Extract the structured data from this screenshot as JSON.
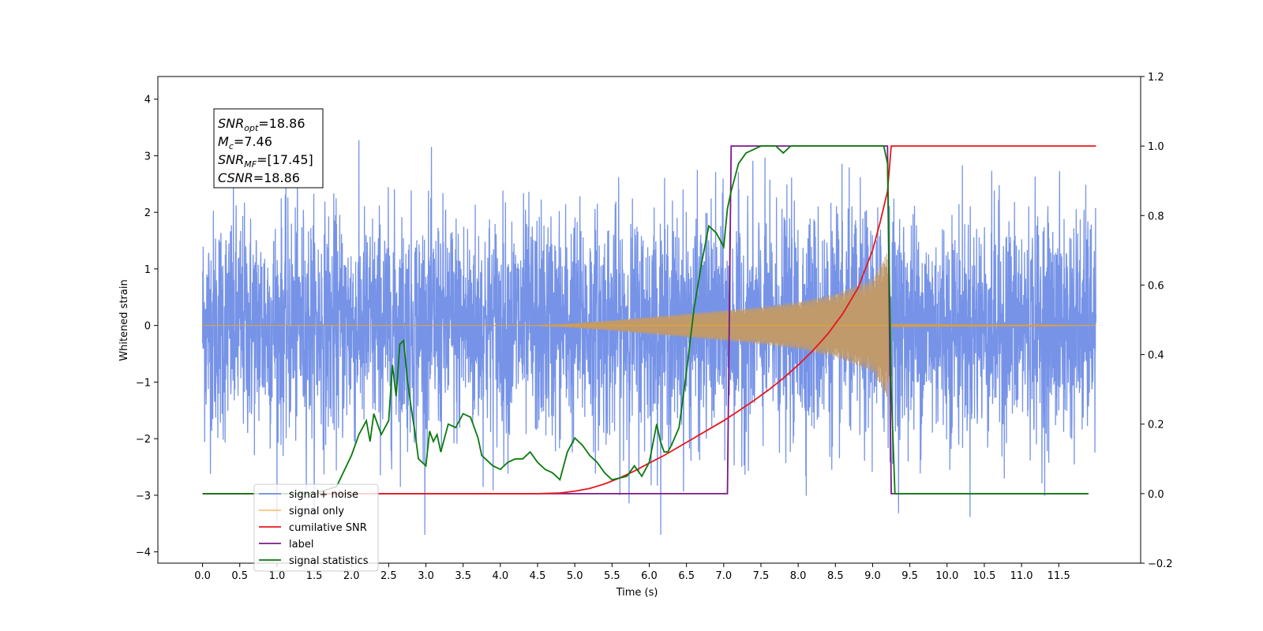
{
  "chart_data": {
    "type": "line",
    "xlabel": "Time (s)",
    "ylabel": "Whitened strain",
    "xlim": [
      -0.6,
      12.6
    ],
    "ylim": [
      -4.2,
      4.4
    ],
    "y2lim": [
      -0.2,
      1.2
    ],
    "grid": false,
    "legend_position": "lower-left",
    "x_ticks": [
      "0.0",
      "0.5",
      "1.0",
      "1.5",
      "2.0",
      "2.5",
      "3.0",
      "3.5",
      "4.0",
      "4.5",
      "5.0",
      "5.5",
      "6.0",
      "6.5",
      "7.0",
      "7.5",
      "8.0",
      "8.5",
      "9.0",
      "9.5",
      "10.0",
      "10.5",
      "11.0",
      "11.5"
    ],
    "y_ticks": [
      4,
      3,
      2,
      1,
      0,
      -1,
      -2,
      -3,
      -4
    ],
    "y_tick_labels": [
      "4",
      "3",
      "2",
      "1",
      "0",
      "−1",
      "−2",
      "−3",
      "−4"
    ],
    "y2_ticks": [
      1.2,
      1.0,
      0.8,
      0.6,
      0.4,
      0.2,
      0.0,
      -0.2
    ],
    "y2_tick_labels": [
      "1.2",
      "1.0",
      "0.8",
      "0.6",
      "0.4",
      "0.2",
      "0.0",
      "−0.2"
    ],
    "colors": {
      "signal_noise": "#6f8de6",
      "signal_only": "#f5a623",
      "signal_envelope": "#c09a6b",
      "cumulative_snr": "#e8161c",
      "label": "#7a1a8a",
      "signal_statistics": "#0a7a0a"
    },
    "series": [
      {
        "name": "signal+ noise",
        "axis": "left",
        "kind": "noise",
        "x_range": [
          0.0,
          12.0
        ],
        "sigma": 1.0,
        "color": "#6f8de6"
      },
      {
        "name": "signal only",
        "axis": "left",
        "kind": "chirp",
        "x": [
          4.5,
          5.0,
          5.5,
          6.0,
          6.5,
          7.0,
          7.5,
          8.0,
          8.5,
          9.0,
          9.2,
          9.25,
          9.3,
          12.0
        ],
        "amplitude": [
          0.0,
          0.04,
          0.09,
          0.15,
          0.21,
          0.27,
          0.33,
          0.42,
          0.56,
          0.82,
          1.3,
          0.0,
          0.03,
          0.0
        ],
        "color": "#c09a6b"
      },
      {
        "name": "cumilative SNR",
        "axis": "right",
        "x": [
          0.0,
          4.5,
          4.8,
          5.0,
          5.2,
          5.4,
          5.6,
          5.8,
          6.0,
          6.2,
          6.4,
          6.6,
          6.8,
          7.0,
          7.2,
          7.4,
          7.6,
          7.8,
          8.0,
          8.2,
          8.4,
          8.6,
          8.8,
          9.0,
          9.1,
          9.2,
          9.25,
          12.0
        ],
        "y": [
          0.0,
          0.0,
          0.002,
          0.007,
          0.015,
          0.028,
          0.045,
          0.065,
          0.088,
          0.11,
          0.135,
          0.16,
          0.185,
          0.21,
          0.238,
          0.267,
          0.298,
          0.332,
          0.37,
          0.412,
          0.46,
          0.518,
          0.59,
          0.7,
          0.78,
          0.87,
          1.0,
          1.0
        ],
        "color": "#e8161c"
      },
      {
        "name": "label",
        "axis": "right",
        "x": [
          0.0,
          7.05,
          7.1,
          9.2,
          9.25,
          11.9
        ],
        "y": [
          0.0,
          0.0,
          1.0,
          1.0,
          0.0,
          0.0
        ],
        "color": "#7a1a8a"
      },
      {
        "name": "signal statistics",
        "axis": "right",
        "x": [
          0.0,
          1.5,
          1.8,
          2.0,
          2.1,
          2.2,
          2.25,
          2.3,
          2.35,
          2.4,
          2.5,
          2.55,
          2.6,
          2.65,
          2.7,
          2.75,
          2.8,
          2.85,
          2.9,
          3.0,
          3.05,
          3.1,
          3.15,
          3.2,
          3.3,
          3.4,
          3.5,
          3.6,
          3.7,
          3.75,
          3.8,
          3.9,
          4.0,
          4.1,
          4.2,
          4.3,
          4.4,
          4.5,
          4.6,
          4.7,
          4.8,
          4.9,
          5.0,
          5.1,
          5.2,
          5.3,
          5.4,
          5.5,
          5.7,
          5.8,
          5.9,
          6.0,
          6.1,
          6.15,
          6.2,
          6.25,
          6.3,
          6.4,
          6.5,
          6.6,
          6.7,
          6.8,
          6.9,
          7.0,
          7.05,
          7.1,
          7.15,
          7.2,
          7.3,
          7.4,
          7.5,
          7.6,
          7.7,
          7.8,
          7.9,
          8.0,
          8.2,
          8.4,
          8.6,
          8.8,
          9.0,
          9.15,
          9.2,
          9.25,
          9.3,
          11.9
        ],
        "y": [
          0.0,
          0.0,
          0.02,
          0.11,
          0.17,
          0.21,
          0.15,
          0.23,
          0.2,
          0.17,
          0.21,
          0.37,
          0.28,
          0.43,
          0.44,
          0.33,
          0.25,
          0.18,
          0.1,
          0.08,
          0.18,
          0.15,
          0.17,
          0.12,
          0.2,
          0.19,
          0.23,
          0.22,
          0.16,
          0.11,
          0.1,
          0.08,
          0.07,
          0.09,
          0.1,
          0.1,
          0.12,
          0.09,
          0.07,
          0.06,
          0.04,
          0.12,
          0.16,
          0.14,
          0.11,
          0.09,
          0.06,
          0.04,
          0.05,
          0.08,
          0.05,
          0.09,
          0.2,
          0.15,
          0.12,
          0.12,
          0.14,
          0.19,
          0.35,
          0.53,
          0.66,
          0.77,
          0.75,
          0.71,
          0.82,
          0.87,
          0.91,
          0.95,
          0.98,
          0.99,
          1.0,
          1.0,
          1.0,
          0.98,
          1.0,
          1.0,
          1.0,
          1.0,
          1.0,
          1.0,
          1.0,
          1.0,
          0.95,
          0.3,
          0.0,
          0.0
        ],
        "color": "#0a7a0a"
      }
    ],
    "annotation": {
      "lines": [
        {
          "base": "SNR",
          "sub": "opt",
          "rest": "=18.86"
        },
        {
          "base": "M",
          "sub": "c",
          "rest": "=7.46"
        },
        {
          "base": "SNR",
          "sub": "MF",
          "rest": "=[17.45]"
        },
        {
          "base": "CSNR",
          "sub": "",
          "rest": "=18.86"
        }
      ]
    },
    "legend": [
      {
        "label": "signal+ noise",
        "color": "#6f8de6"
      },
      {
        "label": "signal only",
        "color": "#f5c57a"
      },
      {
        "label": "cumilative SNR",
        "color": "#e8161c"
      },
      {
        "label": "label",
        "color": "#7a1a8a"
      },
      {
        "label": "signal statistics",
        "color": "#0a7a0a"
      }
    ]
  }
}
